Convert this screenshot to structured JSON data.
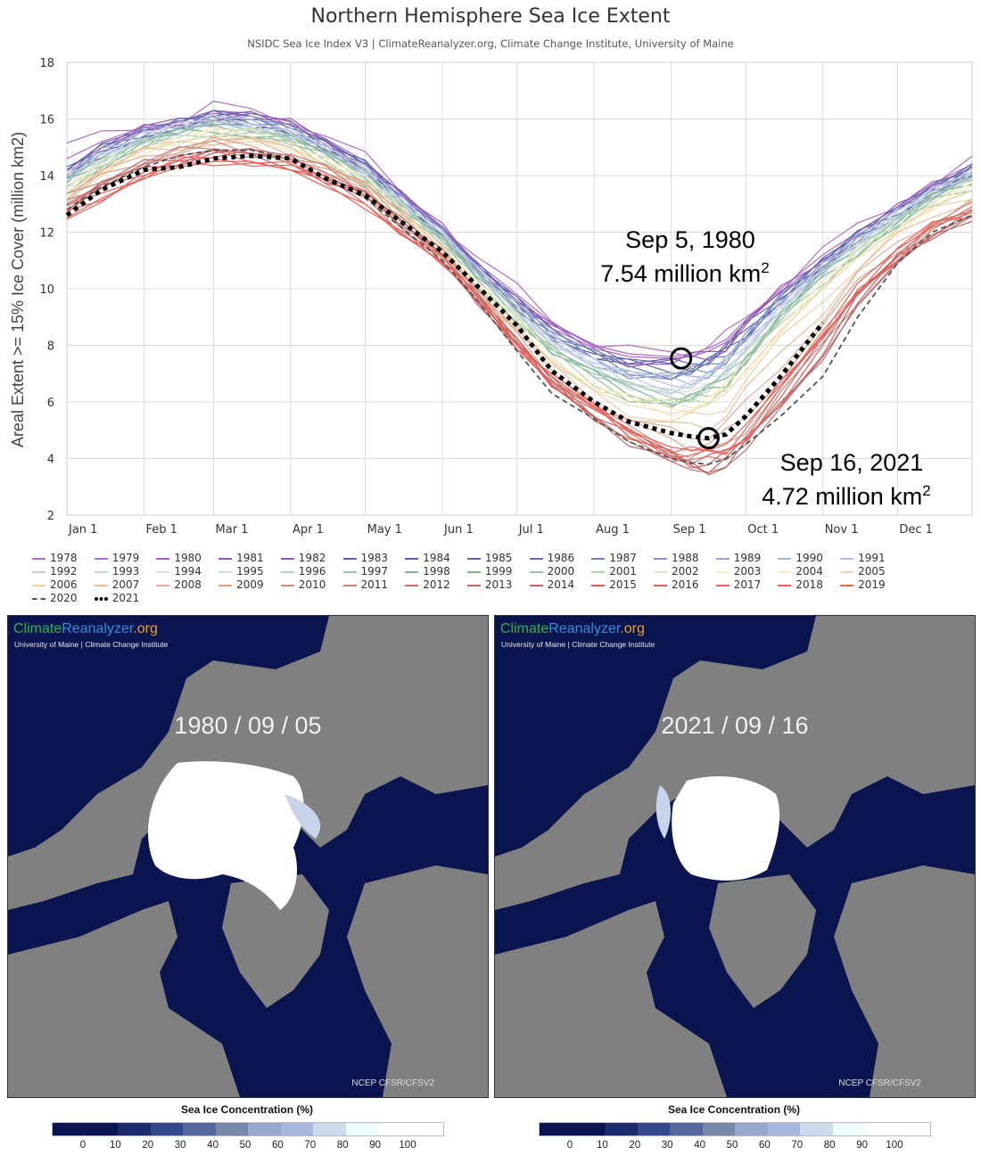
{
  "chart_data": {
    "type": "line",
    "title": "Northern Hemisphere Sea Ice Extent",
    "subtitle": "NSIDC Sea Ice Index V3 | ClimateReanalyzer.org, Climate Change Institute, University of Maine",
    "ylabel": "Areal Extent >= 15% Ice Cover (million km2)",
    "xlabel": "",
    "ylim": [
      2,
      18
    ],
    "yticks": [
      2,
      4,
      6,
      8,
      10,
      12,
      14,
      16,
      18
    ],
    "xticks": [
      "Jan 1",
      "Feb 1",
      "Mar 1",
      "Apr 1",
      "May 1",
      "Jun 1",
      "Jul 1",
      "Aug 1",
      "Sep 1",
      "Oct 1",
      "Nov 1",
      "Dec 1"
    ],
    "xtick_days": [
      1,
      32,
      60,
      91,
      121,
      152,
      182,
      213,
      244,
      274,
      305,
      335
    ],
    "grid": true,
    "legend_position": "bottom",
    "x_days": [
      1,
      15,
      32,
      46,
      60,
      75,
      91,
      105,
      121,
      135,
      152,
      166,
      182,
      196,
      213,
      227,
      244,
      252,
      259,
      266,
      274,
      288,
      305,
      319,
      335,
      349,
      365
    ],
    "series_groups_note": "Approximate envelope per era; individual years interpolated between these anchor years",
    "anchor_series": [
      {
        "name": "1979",
        "values": [
          14.6,
          15.2,
          15.7,
          15.9,
          16.3,
          16.2,
          15.9,
          15.3,
          14.5,
          13.4,
          12.2,
          10.9,
          9.8,
          8.8,
          8.0,
          7.7,
          7.6,
          7.7,
          7.9,
          8.2,
          8.9,
          10.0,
          11.2,
          12.0,
          12.9,
          13.7,
          14.4
        ]
      },
      {
        "name": "1980",
        "values": [
          14.2,
          15.0,
          15.6,
          15.9,
          16.2,
          16.1,
          15.8,
          15.2,
          14.4,
          13.3,
          12.1,
          10.8,
          9.6,
          8.6,
          7.9,
          7.6,
          7.54,
          7.6,
          7.8,
          8.1,
          8.8,
          9.9,
          11.0,
          11.9,
          12.8,
          13.6,
          14.3
        ]
      },
      {
        "name": "1995",
        "values": [
          13.8,
          14.6,
          15.3,
          15.6,
          15.8,
          15.7,
          15.4,
          14.8,
          14.0,
          13.0,
          11.8,
          10.5,
          9.2,
          8.1,
          7.2,
          6.6,
          6.3,
          6.4,
          6.6,
          7.0,
          7.8,
          9.2,
          10.6,
          11.6,
          12.5,
          13.3,
          13.9
        ]
      },
      {
        "name": "2005",
        "values": [
          13.4,
          14.2,
          14.9,
          15.2,
          15.4,
          15.3,
          15.0,
          14.4,
          13.7,
          12.7,
          11.4,
          10.0,
          8.7,
          7.4,
          6.4,
          5.9,
          5.6,
          5.7,
          5.9,
          6.3,
          7.1,
          8.5,
          10.0,
          11.1,
          12.1,
          12.9,
          13.5
        ]
      },
      {
        "name": "2012",
        "values": [
          13.0,
          13.7,
          14.4,
          14.7,
          14.9,
          14.8,
          14.6,
          14.1,
          13.4,
          12.4,
          11.2,
          9.7,
          8.0,
          6.6,
          5.5,
          4.6,
          3.9,
          3.6,
          3.5,
          3.7,
          4.3,
          5.8,
          7.6,
          9.4,
          10.9,
          11.9,
          12.6
        ]
      },
      {
        "name": "2019",
        "values": [
          12.5,
          13.2,
          13.9,
          14.3,
          14.5,
          14.5,
          14.2,
          13.6,
          13.0,
          12.0,
          10.9,
          9.6,
          8.1,
          6.9,
          5.8,
          5.0,
          4.4,
          4.3,
          4.3,
          4.5,
          5.2,
          6.6,
          8.4,
          10.2,
          11.4,
          12.2,
          12.7
        ]
      },
      {
        "name": "2020",
        "values": [
          12.8,
          13.6,
          14.3,
          14.7,
          14.9,
          14.9,
          14.6,
          13.9,
          13.2,
          12.2,
          11.0,
          9.6,
          7.8,
          6.3,
          5.4,
          4.6,
          4.0,
          3.85,
          3.8,
          4.0,
          4.5,
          5.5,
          6.9,
          9.0,
          10.9,
          12.0,
          12.6
        ]
      },
      {
        "name": "2021",
        "values": [
          12.6,
          13.5,
          14.2,
          14.3,
          14.6,
          14.7,
          14.6,
          13.9,
          13.3,
          12.4,
          11.3,
          10.1,
          8.7,
          7.1,
          6.0,
          5.3,
          4.9,
          4.78,
          4.72,
          4.85,
          5.5,
          6.9,
          8.8,
          null,
          null,
          null,
          null
        ]
      }
    ],
    "annotations": [
      {
        "label_line1": "Sep 5, 1980",
        "label_line2": "7.54 million km",
        "superscript": "2",
        "day": 248,
        "value": 7.54
      },
      {
        "label_line1": "Sep 16, 2021",
        "label_line2": "4.72 million km",
        "superscript": "2",
        "day": 259,
        "value": 4.72
      }
    ],
    "legend": [
      {
        "year": "1978",
        "color": "#b070c0"
      },
      {
        "year": "1979",
        "color": "#b468c8"
      },
      {
        "year": "1980",
        "color": "#a860c0"
      },
      {
        "year": "1981",
        "color": "#9658b8"
      },
      {
        "year": "1982",
        "color": "#8a5cb4"
      },
      {
        "year": "1983",
        "color": "#6a5ca8"
      },
      {
        "year": "1984",
        "color": "#5a66a8"
      },
      {
        "year": "1985",
        "color": "#5a68ac"
      },
      {
        "year": "1986",
        "color": "#6470b0"
      },
      {
        "year": "1987",
        "color": "#7080b8"
      },
      {
        "year": "1988",
        "color": "#8494c4"
      },
      {
        "year": "1989",
        "color": "#96a8d0"
      },
      {
        "year": "1990",
        "color": "#a4b4d8"
      },
      {
        "year": "1991",
        "color": "#b0c0e0"
      },
      {
        "year": "1992",
        "color": "#bccae4"
      },
      {
        "year": "1993",
        "color": "#c8d4ec"
      },
      {
        "year": "1994",
        "color": "#d4dcf0"
      },
      {
        "year": "1995",
        "color": "#d0dce8"
      },
      {
        "year": "1996",
        "color": "#b8d0cc"
      },
      {
        "year": "1997",
        "color": "#9cc4b0"
      },
      {
        "year": "1998",
        "color": "#84b898"
      },
      {
        "year": "1999",
        "color": "#80b490"
      },
      {
        "year": "2000",
        "color": "#98c49c"
      },
      {
        "year": "2001",
        "color": "#b4d4a8"
      },
      {
        "year": "2002",
        "color": "#dce8c4"
      },
      {
        "year": "2003",
        "color": "#f4f0c0"
      },
      {
        "year": "2004",
        "color": "#f8ecc0"
      },
      {
        "year": "2005",
        "color": "#f0d8b0"
      },
      {
        "year": "2006",
        "color": "#ecd0a8"
      },
      {
        "year": "2007",
        "color": "#e8c0a0"
      },
      {
        "year": "2008",
        "color": "#e0b098"
      },
      {
        "year": "2009",
        "color": "#d8a088"
      },
      {
        "year": "2010",
        "color": "#d09080"
      },
      {
        "year": "2011",
        "color": "#c88078"
      },
      {
        "year": "2012",
        "color": "#c07070"
      },
      {
        "year": "2013",
        "color": "#b86868"
      },
      {
        "year": "2014",
        "color": "#c06060"
      },
      {
        "year": "2015",
        "color": "#d06060"
      },
      {
        "year": "2016",
        "color": "#e06060"
      },
      {
        "year": "2017",
        "color": "#e86060"
      },
      {
        "year": "2018",
        "color": "#f06060"
      },
      {
        "year": "2019",
        "color": "#e86050"
      },
      {
        "year": "2020",
        "color": "#555555",
        "style": "dashed"
      },
      {
        "year": "2021",
        "color": "#000000",
        "style": "dotted"
      }
    ]
  },
  "maps": [
    {
      "logo_part1": "Climate",
      "logo_part2": "Reanalyzer",
      "logo_part3": ".org",
      "institution": "University of Maine | Climate Change Institute",
      "date": "1980 / 09 / 05",
      "source": "NCEP CFSR/CFSV2",
      "colorbar_title": "Sea Ice Concentration (%)"
    },
    {
      "logo_part1": "Climate",
      "logo_part2": "Reanalyzer",
      "logo_part3": ".org",
      "institution": "University of Maine | Climate Change Institute",
      "date": "2021 / 09 / 16",
      "source": "NCEP CFSR/CFSV2",
      "colorbar_title": "Sea Ice Concentration (%)"
    }
  ],
  "colorbar": {
    "labels": [
      "0",
      "10",
      "20",
      "30",
      "40",
      "50",
      "60",
      "70",
      "80",
      "90",
      "100"
    ],
    "colors": [
      "#0a1550",
      "#0a1550",
      "#1a2a6a",
      "#34488c",
      "#56699c",
      "#7888a8",
      "#98a8cc",
      "#a8b8dc",
      "#ccdcec",
      "#eefcff",
      "#ffffff"
    ]
  }
}
